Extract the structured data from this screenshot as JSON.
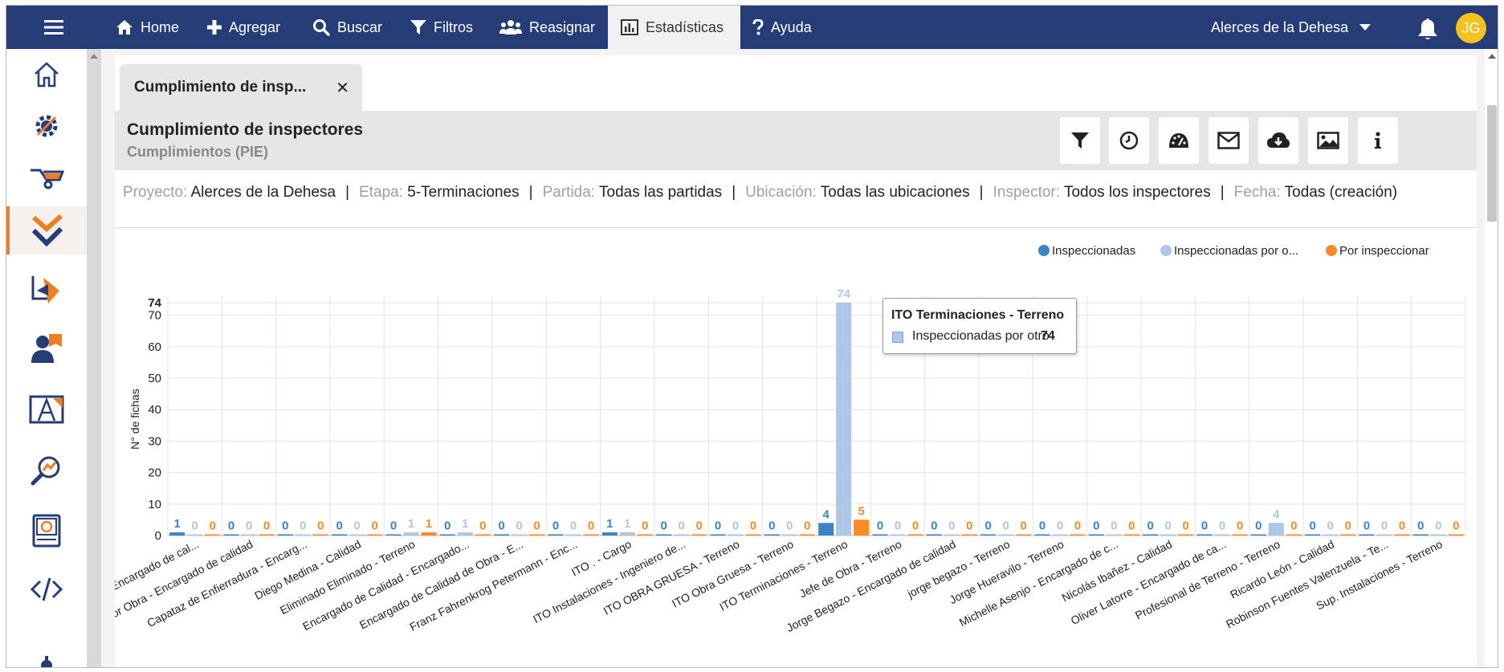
{
  "nav": {
    "items": [
      {
        "label": "Home",
        "icon": "home-icon"
      },
      {
        "label": "Agregar",
        "icon": "plus-icon"
      },
      {
        "label": "Buscar",
        "icon": "search-icon"
      },
      {
        "label": "Filtros",
        "icon": "filter-icon"
      },
      {
        "label": "Reasignar",
        "icon": "users-icon"
      },
      {
        "label": "Estadísticas",
        "icon": "bar-chart-icon"
      },
      {
        "label": "Ayuda",
        "icon": "question-icon"
      }
    ],
    "project": "Alerces de la Dehesa",
    "avatar_initials": "JG"
  },
  "tab": {
    "label": "Cumplimiento de insp..."
  },
  "report": {
    "title": "Cumplimiento de inspectores",
    "subtitle": "Cumplimientos (PIE)"
  },
  "filters": [
    {
      "key": "Proyecto:",
      "value": "Alerces de la Dehesa"
    },
    {
      "key": "Etapa:",
      "value": "5-Terminaciones"
    },
    {
      "key": "Partida:",
      "value": "Todas las partidas"
    },
    {
      "key": "Ubicación:",
      "value": "Todas las ubicaciones"
    },
    {
      "key": "Inspector:",
      "value": "Todos los inspectores"
    },
    {
      "key": "Fecha:",
      "value": "Todas (creación)"
    }
  ],
  "tooltip": {
    "title": "ITO Terminaciones - Terreno",
    "label": "Inspeccionadas por otro",
    "value": "74"
  },
  "colors": {
    "nav": "#253c77",
    "accent": "#f07d22",
    "s1": "#3a84c1",
    "s2": "#aec7e8",
    "s3": "#f98b26"
  },
  "chart_data": {
    "type": "bar",
    "ylabel": "N° de fichas",
    "ylim": [
      0,
      74
    ],
    "yticks": [
      0,
      10,
      20,
      30,
      40,
      50,
      60,
      70,
      74
    ],
    "legend_position": "top-right",
    "categories": [
      "- Encargado de cal...",
      "or Obra - Encargado de calidad",
      "Capataz de Enfierradura - Encarg...",
      "Diego Medina - Calidad",
      "Eliminado Eliminado - Terreno",
      "Encargado de Calidad - Encargado...",
      "Encargado de Calidad de Obra - E...",
      "Franz Fahrenkrog Petermann - Enc...",
      "ITO . - Cargo",
      "ITO Instalaciones - Ingeniero de...",
      "ITO OBRA GRUESA - Terreno",
      "ITO Obra Gruesa - Terreno",
      "ITO Terminaciones - Terreno",
      "Jefe de Obra - Terreno",
      "Jorge Begazo - Encargado de calidad",
      "jorge begazo - Terreno",
      "Jorge Hueravilo - Terreno",
      "Michelle Asenjo - Encargado de c...",
      "Nicolás Ibañez - Calidad",
      "Oliver Latorre - Encargado de ca...",
      "Profesional de Terreno - Terreno",
      "Ricardo León - Calidad",
      "Robinson Fuentes Valenzuela - Te...",
      "Sup. Instalaciones - Terreno"
    ],
    "series": [
      {
        "name": "Inspeccionadas",
        "color": "#3a84c1",
        "values": [
          1,
          0,
          0,
          0,
          0,
          0,
          0,
          0,
          1,
          0,
          0,
          0,
          4,
          0,
          0,
          0,
          0,
          0,
          0,
          0,
          0,
          0,
          0,
          0
        ]
      },
      {
        "name": "Inspeccionadas por o...",
        "color": "#aec7e8",
        "values": [
          0,
          0,
          0,
          0,
          1,
          1,
          0,
          0,
          1,
          0,
          0,
          0,
          74,
          0,
          0,
          0,
          0,
          0,
          0,
          0,
          4,
          0,
          0,
          0
        ]
      },
      {
        "name": "Por inspeccionar",
        "color": "#f98b26",
        "values": [
          0,
          0,
          0,
          0,
          1,
          0,
          0,
          0,
          0,
          0,
          0,
          0,
          5,
          0,
          0,
          0,
          0,
          0,
          0,
          0,
          0,
          0,
          0,
          0
        ]
      }
    ]
  }
}
